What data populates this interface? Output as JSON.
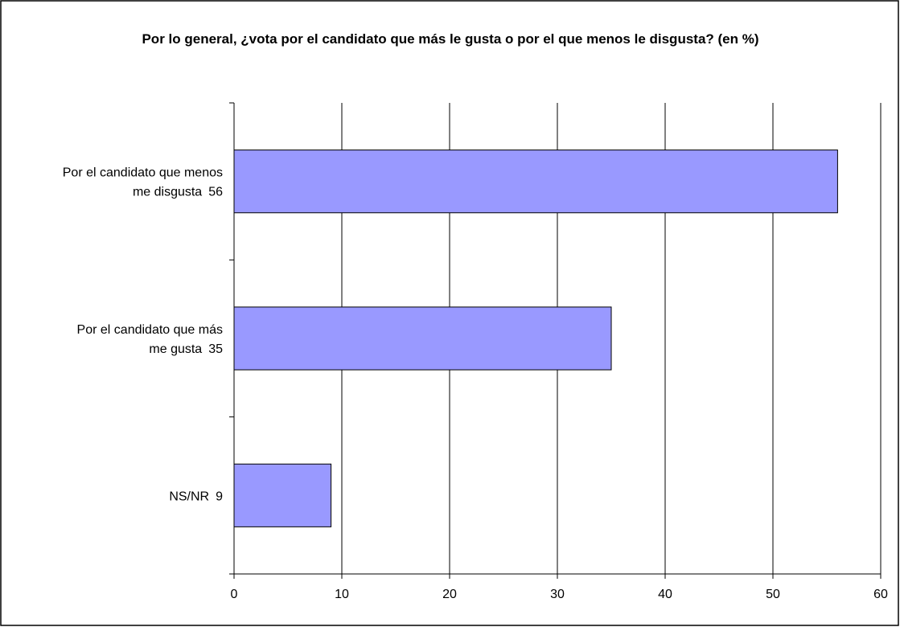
{
  "chart_data": {
    "type": "bar",
    "orientation": "horizontal",
    "title": "Por lo general, ¿vota por el candidato que más le gusta o por el que menos le disgusta? (en %)",
    "categories": [
      "Por el candidato que menos me disgusta",
      "Por el candidato que más me gusta",
      "NS/NR"
    ],
    "values": [
      56,
      35,
      9
    ],
    "color": "#9999ff",
    "xlim": [
      0,
      60
    ],
    "xticks": [
      0,
      10,
      20,
      30,
      40,
      50,
      60
    ],
    "grid": true
  }
}
